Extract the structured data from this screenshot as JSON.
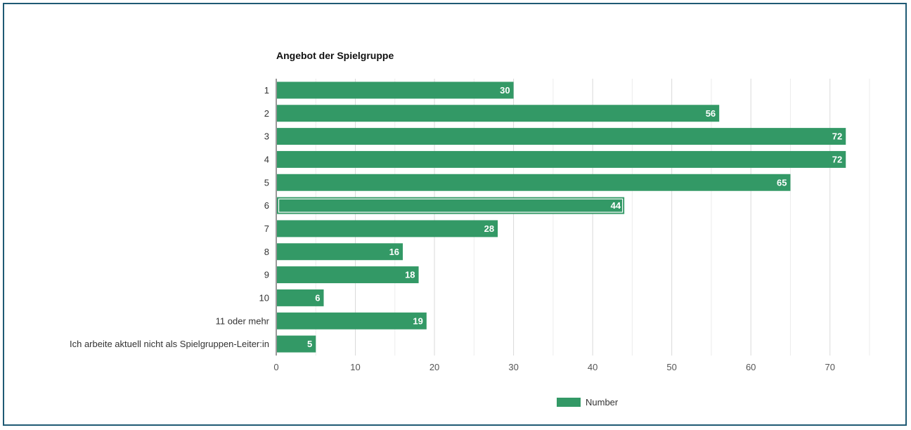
{
  "chart_data": {
    "type": "bar",
    "orientation": "horizontal",
    "title": "Angebot der Spielgruppe",
    "categories": [
      "1",
      "2",
      "3",
      "4",
      "5",
      "6",
      "7",
      "8",
      "9",
      "10",
      "11 oder mehr",
      "Ich arbeite aktuell nicht als Spielgruppen-Leiter:in"
    ],
    "series": [
      {
        "name": "Number",
        "values": [
          30,
          56,
          72,
          72,
          65,
          44,
          28,
          16,
          18,
          6,
          19,
          5
        ]
      }
    ],
    "xlim": [
      0,
      75
    ],
    "x_ticks": [
      0,
      10,
      20,
      30,
      40,
      50,
      60,
      70
    ],
    "highlighted_category": "6",
    "grid": true,
    "legend_position": "bottom",
    "data_labels": true
  },
  "colors": {
    "bar": "#339966",
    "grid": "#e0e0e0",
    "axis": "#333333",
    "frame": "#1f5a74"
  }
}
